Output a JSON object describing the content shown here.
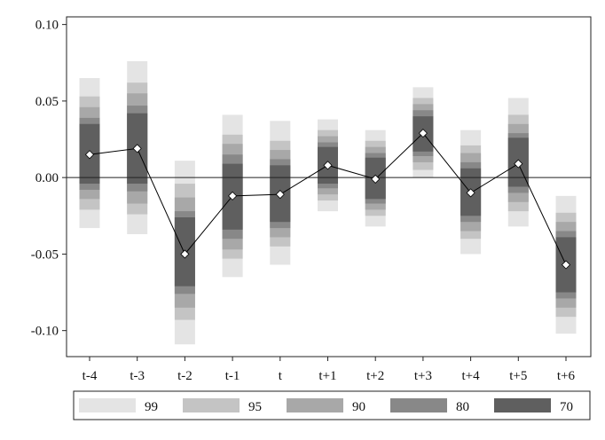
{
  "chart_data": {
    "type": "interval",
    "categories": [
      "t-4",
      "t-3",
      "t-2",
      "t-1",
      "t",
      "t+1",
      "t+2",
      "t+3",
      "t+4",
      "t+5",
      "t+6"
    ],
    "estimates": [
      0.015,
      0.019,
      -0.05,
      -0.012,
      -0.011,
      0.008,
      -0.001,
      0.029,
      -0.01,
      0.009,
      -0.057
    ],
    "bands": [
      {
        "name": "99",
        "color": "#e4e4e4",
        "lower": [
          -0.033,
          -0.037,
          -0.109,
          -0.065,
          -0.057,
          -0.022,
          -0.032,
          0.0,
          -0.05,
          -0.032,
          -0.102
        ],
        "upper": [
          0.065,
          0.076,
          0.011,
          0.041,
          0.037,
          0.038,
          0.031,
          0.059,
          0.031,
          0.052,
          -0.012
        ]
      },
      {
        "name": "95",
        "color": "#c4c4c4",
        "lower": [
          -0.021,
          -0.024,
          -0.093,
          -0.053,
          -0.045,
          -0.015,
          -0.025,
          0.005,
          -0.04,
          -0.022,
          -0.091
        ],
        "upper": [
          0.053,
          0.062,
          -0.004,
          0.028,
          0.024,
          0.031,
          0.024,
          0.052,
          0.021,
          0.041,
          -0.023
        ]
      },
      {
        "name": "90",
        "color": "#a8a8a8",
        "lower": [
          -0.014,
          -0.017,
          -0.085,
          -0.047,
          -0.039,
          -0.011,
          -0.021,
          0.01,
          -0.035,
          -0.016,
          -0.085
        ],
        "upper": [
          0.046,
          0.055,
          -0.013,
          0.022,
          0.018,
          0.027,
          0.02,
          0.048,
          0.016,
          0.035,
          -0.029
        ]
      },
      {
        "name": "80",
        "color": "#888888",
        "lower": [
          -0.008,
          -0.009,
          -0.076,
          -0.04,
          -0.033,
          -0.007,
          -0.017,
          0.014,
          -0.029,
          -0.01,
          -0.079
        ],
        "upper": [
          0.039,
          0.047,
          -0.022,
          0.015,
          0.012,
          0.023,
          0.016,
          0.044,
          0.01,
          0.029,
          -0.035
        ]
      },
      {
        "name": "70",
        "color": "#5f5f5f",
        "lower": [
          -0.004,
          -0.004,
          -0.071,
          -0.034,
          -0.029,
          -0.004,
          -0.014,
          0.017,
          -0.025,
          -0.006,
          -0.075
        ],
        "upper": [
          0.035,
          0.042,
          -0.026,
          0.009,
          0.008,
          0.02,
          0.013,
          0.04,
          0.006,
          0.026,
          -0.039
        ]
      }
    ],
    "ylim": [
      -0.117,
      0.105
    ],
    "yticks": [
      -0.1,
      -0.05,
      0.0,
      0.05,
      0.1
    ],
    "ytick_labels": [
      "-0.10",
      "-0.05",
      "0.00",
      "0.05",
      "0.10"
    ],
    "reference_line": 0,
    "grid": false,
    "legend_position": "bottom"
  }
}
